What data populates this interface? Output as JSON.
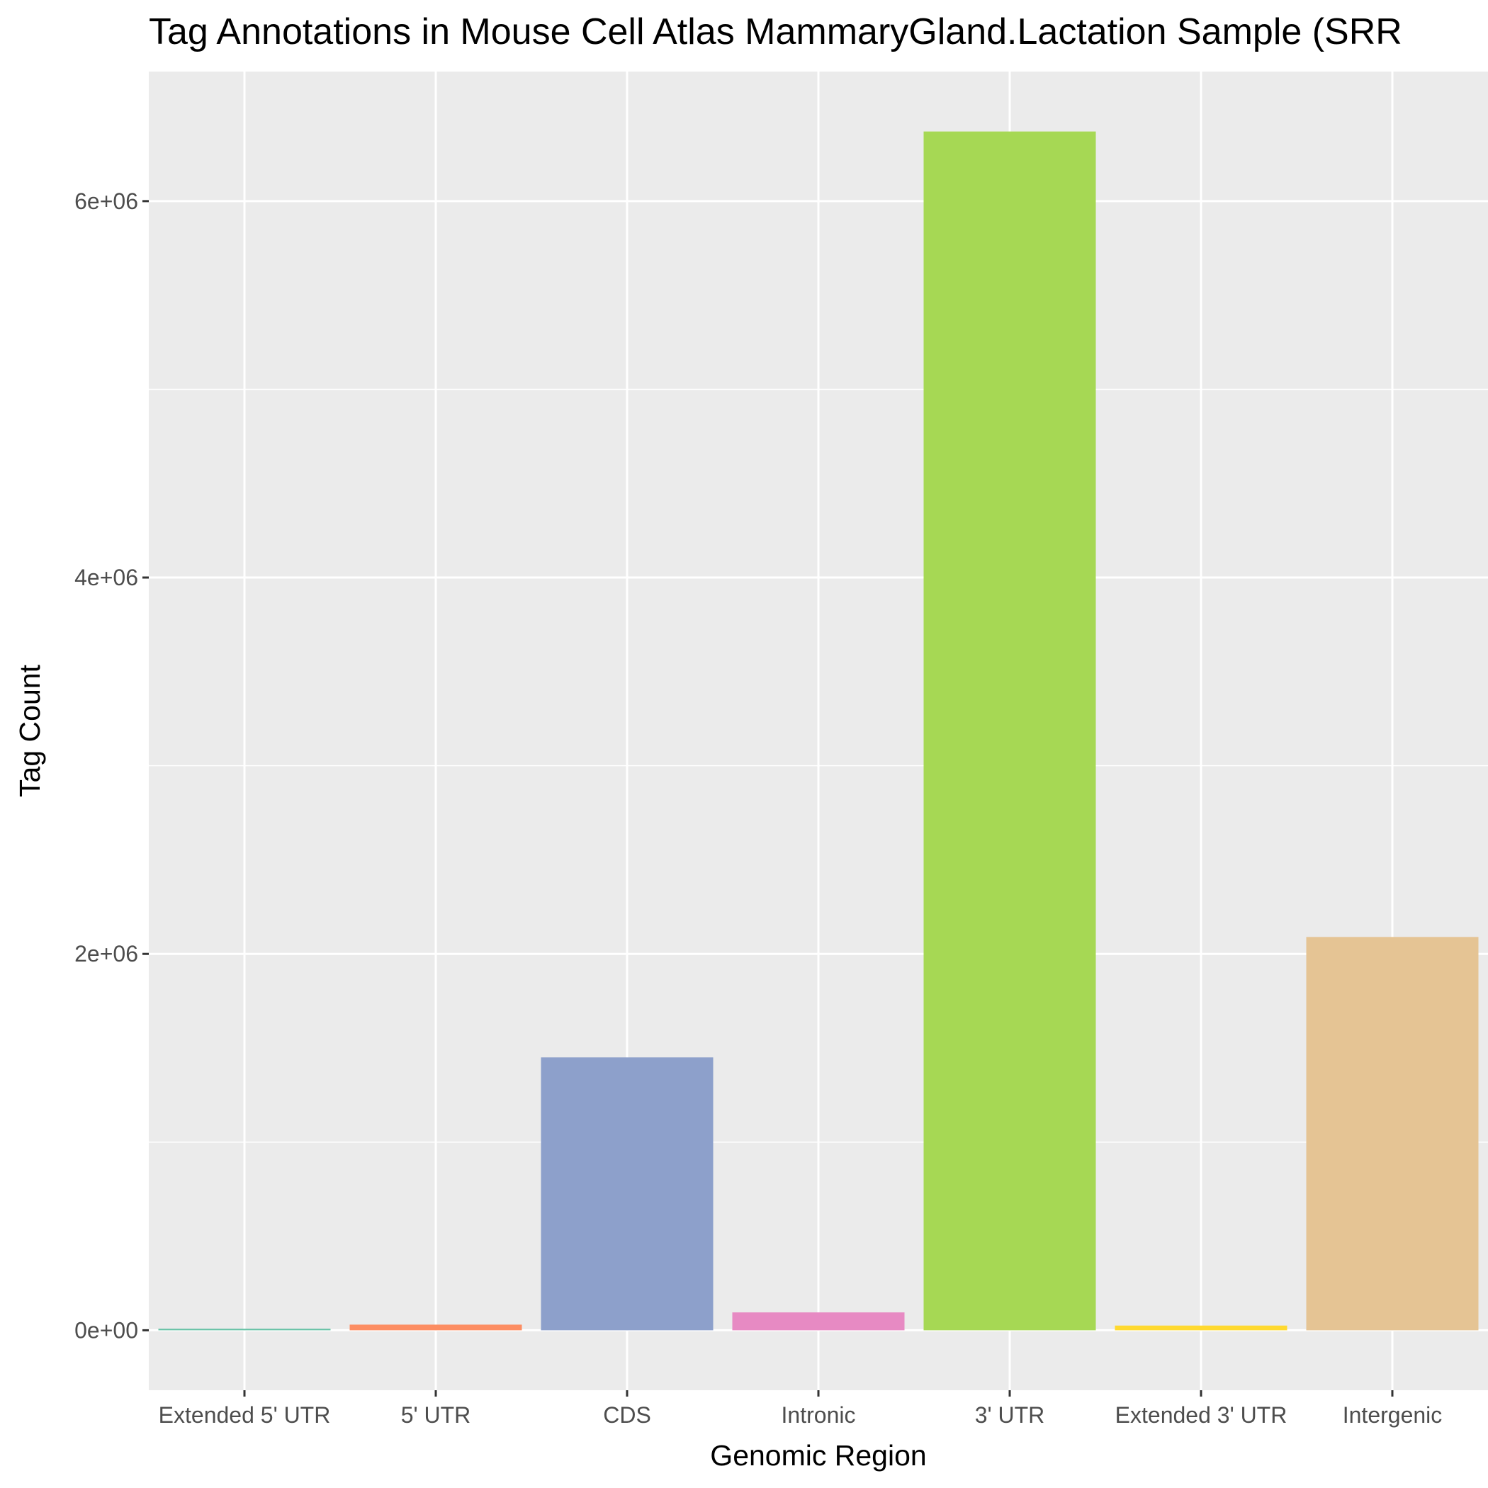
{
  "chart_data": {
    "type": "bar",
    "title": "Tag Annotations in Mouse Cell Atlas MammaryGland.Lactation Sample (SRR",
    "xlabel": "Genomic Region",
    "ylabel": "Tag Count",
    "categories": [
      "Extended 5' UTR",
      "5' UTR",
      "CDS",
      "Intronic",
      "3' UTR",
      "Extended 3' UTR",
      "Intergenic"
    ],
    "values": [
      8000,
      30000,
      1450000,
      95000,
      6370000,
      25000,
      2090000
    ],
    "colors": [
      "#66C2A5",
      "#FC8D62",
      "#8DA0CB",
      "#E78AC3",
      "#A6D854",
      "#FFD92F",
      "#E5C494"
    ],
    "ylim": [
      -318500,
      6688500
    ],
    "y_ticks": [
      0,
      2000000,
      4000000,
      6000000
    ],
    "y_tick_labels": [
      "0e+00",
      "2e+06",
      "4e+06",
      "6e+06"
    ],
    "grid": true,
    "panel_background": "#EBEBEB",
    "grid_color": "#FFFFFF"
  }
}
